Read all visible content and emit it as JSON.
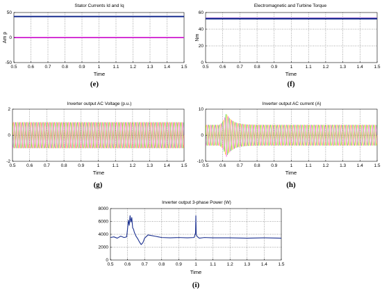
{
  "chart_data": [
    {
      "id": "e",
      "type": "line",
      "caption": "(e)",
      "title": "Stator Currents Id and Iq",
      "xlabel": "Time",
      "ylabel": "Am p",
      "xlim": [
        0.5,
        1.5
      ],
      "ylim": [
        -50,
        50
      ],
      "xticks": [
        "0.5",
        "0.6",
        "0.7",
        "0.8",
        "0.9",
        "1",
        "1.1",
        "1.2",
        "1.3",
        "1.4",
        "1.5"
      ],
      "yticks": [
        "-50",
        "0",
        "50"
      ],
      "grid": true,
      "series": [
        {
          "color": "#1a2f8f",
          "x": [
            0.5,
            1.5
          ],
          "y": [
            42,
            42
          ]
        },
        {
          "color": "#d433d4",
          "x": [
            0.5,
            1.5
          ],
          "y": [
            0,
            0
          ]
        }
      ]
    },
    {
      "id": "f",
      "type": "line",
      "caption": "(f)",
      "title": "Electromagnetic and Turbine Torque",
      "xlabel": "Time",
      "ylabel": "Nm",
      "xlim": [
        0.5,
        1.5
      ],
      "ylim": [
        0,
        60
      ],
      "xticks": [
        "0.5",
        "0.6",
        "0.7",
        "0.8",
        "0.9",
        "1",
        "1.1",
        "1.2",
        "1.3",
        "1.4",
        "1.5"
      ],
      "yticks": [
        "0",
        "20",
        "40",
        "60"
      ],
      "grid": true,
      "series": [
        {
          "color": "#7b2fbf",
          "x": [
            0.5,
            1.5
          ],
          "y": [
            53,
            53
          ]
        },
        {
          "color": "#1a2f8f",
          "x": [
            0.5,
            1.5
          ],
          "y": [
            52.5,
            52.5
          ]
        }
      ]
    },
    {
      "id": "g",
      "type": "line",
      "caption": "(g)",
      "title": "Inverter output AC Voltage (p.u.)",
      "xlabel": "Time",
      "ylabel": "",
      "xlim": [
        0.5,
        1.5
      ],
      "ylim": [
        -2,
        2
      ],
      "xticks": [
        "0.5",
        "0.6",
        "0.7",
        "0.8",
        "0.9",
        "1",
        "1.1",
        "1.2",
        "1.3",
        "1.4",
        "1.5"
      ],
      "yticks": [
        "-2",
        "0",
        "2"
      ],
      "grid": true,
      "oscillation": {
        "amplitude": 1,
        "frequency_hz": 50,
        "phases": 3
      },
      "series": [
        {
          "color": "#ff9900"
        },
        {
          "color": "#33cc33"
        },
        {
          "color": "#ff33cc"
        }
      ]
    },
    {
      "id": "h",
      "type": "line",
      "caption": "(h)",
      "title": "Inverter output AC current (A)",
      "xlabel": "Time",
      "ylabel": "",
      "xlim": [
        0.5,
        1.5
      ],
      "ylim": [
        -10,
        10
      ],
      "xticks": [
        "0.5",
        "0.6",
        "0.7",
        "0.8",
        "0.9",
        "1",
        "1.1",
        "1.2",
        "1.3",
        "1.4",
        "1.5"
      ],
      "yticks": [
        "-10",
        "0",
        "10"
      ],
      "grid": true,
      "oscillation": {
        "amplitude": 4,
        "frequency_hz": 50,
        "phases": 3,
        "transient_peak": 8.5,
        "transient_at": 0.62
      },
      "series": [
        {
          "color": "#ffcc00"
        },
        {
          "color": "#33cc33"
        },
        {
          "color": "#ff33cc"
        }
      ]
    },
    {
      "id": "i",
      "type": "line",
      "caption": "(i)",
      "title": "Inverter output 3-phase Power (W)",
      "xlabel": "Time",
      "ylabel": "",
      "xlim": [
        0.5,
        1.5
      ],
      "ylim": [
        0,
        8000
      ],
      "xticks": [
        "0.5",
        "0.6",
        "0.7",
        "0.8",
        "0.9",
        "1",
        "1.1",
        "1.2",
        "1.3",
        "1.4",
        "1.5"
      ],
      "yticks": [
        "0",
        "2000",
        "4000",
        "6000",
        "8000"
      ],
      "grid": true,
      "series": [
        {
          "color": "#1a2f8f",
          "x": [
            0.5,
            0.52,
            0.54,
            0.56,
            0.58,
            0.595,
            0.6,
            0.605,
            0.61,
            0.615,
            0.62,
            0.625,
            0.63,
            0.635,
            0.64,
            0.65,
            0.66,
            0.67,
            0.68,
            0.69,
            0.7,
            0.72,
            0.74,
            0.76,
            0.78,
            0.8,
            0.85,
            0.9,
            0.95,
            0.99,
            0.998,
            1.0,
            1.002,
            1.01,
            1.02,
            1.05,
            1.1,
            1.2,
            1.3,
            1.4,
            1.5
          ],
          "y": [
            3500,
            3600,
            3400,
            3700,
            3500,
            3600,
            4800,
            6200,
            5400,
            6900,
            5900,
            6600,
            5000,
            4800,
            4300,
            3700,
            3300,
            2800,
            2400,
            2700,
            3400,
            3900,
            3800,
            3700,
            3600,
            3500,
            3450,
            3500,
            3450,
            3500,
            4200,
            6900,
            3900,
            3600,
            3400,
            3500,
            3450,
            3450,
            3400,
            3450,
            3400
          ]
        }
      ]
    }
  ]
}
